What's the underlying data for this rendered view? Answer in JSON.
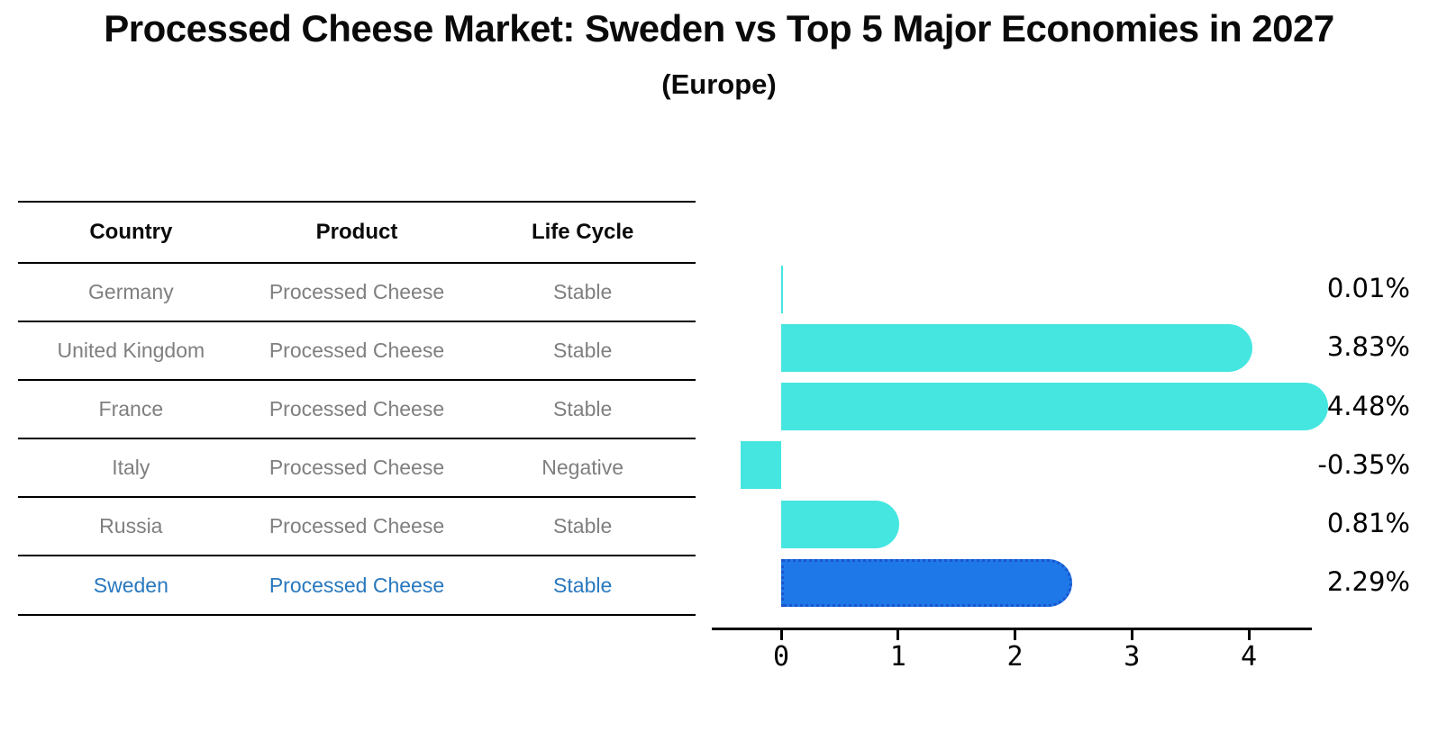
{
  "title": "Processed Cheese Market: Sweden vs Top 5 Major Economies in 2027",
  "subtitle": "(Europe)",
  "table": {
    "headers": [
      "Country",
      "Product",
      "Life Cycle"
    ],
    "rows": [
      {
        "country": "Germany",
        "product": "Processed Cheese",
        "life_cycle": "Stable",
        "highlight": false
      },
      {
        "country": "United Kingdom",
        "product": "Processed Cheese",
        "life_cycle": "Stable",
        "highlight": false
      },
      {
        "country": "France",
        "product": "Processed Cheese",
        "life_cycle": "Stable",
        "highlight": false
      },
      {
        "country": "Italy",
        "product": "Processed Cheese",
        "life_cycle": "Negative",
        "highlight": false
      },
      {
        "country": "Russia",
        "product": "Processed Cheese",
        "life_cycle": "Stable",
        "highlight": false
      },
      {
        "country": "Sweden",
        "product": "Processed Cheese",
        "life_cycle": "Stable",
        "highlight": true
      }
    ]
  },
  "chart_data": {
    "type": "bar",
    "orientation": "horizontal",
    "title": "Processed Cheese Market: Sweden vs Top 5 Major Economies in 2027 (Europe)",
    "categories": [
      "Germany",
      "United Kingdom",
      "France",
      "Italy",
      "Russia",
      "Sweden"
    ],
    "values": [
      0.01,
      3.83,
      4.48,
      -0.35,
      0.81,
      2.29
    ],
    "value_labels": [
      "0.01%",
      "3.83%",
      "4.48%",
      "-0.35%",
      "0.81%",
      "2.29%"
    ],
    "xticks": [
      "0",
      "1",
      "2",
      "3",
      "4"
    ],
    "xlim": [
      -0.6,
      4.55
    ],
    "grid": false,
    "legend": null,
    "highlight_category": "Sweden",
    "bar_color": "#45E6E0",
    "highlight_bar_color": "#1F78E8",
    "highlight_border_color": "#1A55CC"
  },
  "colors": {
    "row_text": "#7F7F7F",
    "highlight_text": "#2878BE",
    "header_text": "#0A0A0A",
    "axis": "#000000",
    "background": "#FFFFFF"
  }
}
